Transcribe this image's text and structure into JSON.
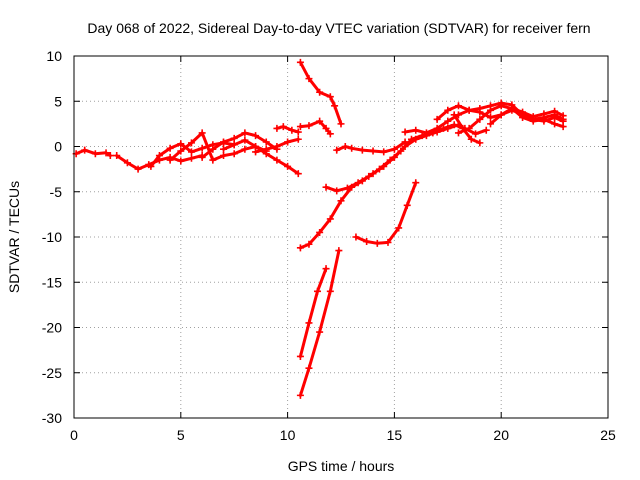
{
  "chart_data": {
    "type": "scatter",
    "title": "Day 068 of 2022, Sidereal Day-to-day VTEC variation (SDTVAR) for receiver fern",
    "xlabel": "GPS time / hours",
    "ylabel": "SDTVAR / TECUs",
    "xlim": [
      0,
      25
    ],
    "ylim": [
      -30,
      10
    ],
    "xticks": [
      0,
      5,
      10,
      15,
      20,
      25
    ],
    "yticks": [
      -30,
      -25,
      -20,
      -15,
      -10,
      -5,
      0,
      5,
      10
    ],
    "grid": true,
    "marker": "plus",
    "color": "#ff0000",
    "series": [
      {
        "name": "seg-early-1",
        "x": [
          0.1,
          0.5,
          1.0,
          1.5,
          1.7
        ],
        "y": [
          -0.8,
          -0.4,
          -0.8,
          -0.7,
          -1.0
        ]
      },
      {
        "name": "seg-early-2",
        "x": [
          2.0,
          2.5,
          3.0,
          3.5,
          4.0,
          4.5,
          5.0,
          5.5,
          6.0
        ],
        "y": [
          -1.0,
          -1.8,
          -2.5,
          -2.0,
          -1.5,
          -1.2,
          -1.6,
          -1.3,
          -1.0
        ]
      },
      {
        "name": "seg-early-3",
        "x": [
          3.6,
          4.0,
          4.5,
          5.0,
          5.5,
          6.0,
          6.5,
          7.0,
          7.5
        ],
        "y": [
          -2.2,
          -1.0,
          -0.2,
          0.3,
          -0.6,
          -0.2,
          0.2,
          0.4,
          0.2
        ]
      },
      {
        "name": "seg-early-4",
        "x": [
          4.5,
          5.0,
          5.5,
          6.0,
          6.5,
          7.0,
          7.5,
          8.0,
          8.5,
          9.0
        ],
        "y": [
          -1.5,
          -0.5,
          0.4,
          1.5,
          -1.5,
          -1.0,
          -0.8,
          -0.3,
          0.0,
          -0.5
        ]
      },
      {
        "name": "seg-early-5",
        "x": [
          6.0,
          6.5,
          7.0,
          7.5,
          8.0,
          8.5,
          9.0,
          9.5
        ],
        "y": [
          -1.2,
          -0.3,
          0.5,
          0.9,
          1.5,
          1.2,
          0.5,
          -0.3
        ]
      },
      {
        "name": "seg-early-6",
        "x": [
          7.0,
          7.5,
          8.0,
          8.5,
          9.0,
          9.5,
          10.0,
          10.5
        ],
        "y": [
          -0.3,
          0.2,
          0.7,
          0.0,
          -0.8,
          -1.5,
          -2.2,
          -3.0
        ]
      },
      {
        "name": "seg-early-7",
        "x": [
          8.5,
          9.0,
          9.5,
          10.0,
          10.5
        ],
        "y": [
          -0.6,
          -0.3,
          0.0,
          0.5,
          0.8
        ]
      },
      {
        "name": "seg-early-8",
        "x": [
          9.5,
          9.8,
          10.2,
          10.5
        ],
        "y": [
          2.0,
          2.2,
          1.8,
          1.6
        ]
      },
      {
        "name": "seg-drop-high",
        "x": [
          10.6,
          11.0,
          11.5,
          12.0,
          12.2,
          12.5
        ],
        "y": [
          9.3,
          7.5,
          6.0,
          5.5,
          4.5,
          2.5
        ]
      },
      {
        "name": "seg-bump-11",
        "x": [
          10.6,
          11.0,
          11.5,
          11.8,
          12.0
        ],
        "y": [
          2.2,
          2.3,
          2.8,
          2.0,
          1.4
        ]
      },
      {
        "name": "seg-mid-flat",
        "x": [
          12.3,
          12.7,
          13.0,
          13.5,
          14.0,
          14.5,
          15.0,
          15.5
        ],
        "y": [
          -0.4,
          0.0,
          -0.2,
          -0.4,
          -0.5,
          -0.6,
          -0.3,
          0.5
        ]
      },
      {
        "name": "seg-rise-long",
        "x": [
          10.6,
          11.0,
          11.5,
          12.0,
          12.5,
          13.0,
          13.5,
          14.0,
          14.5,
          15.0,
          15.5,
          16.0,
          16.5,
          17.0,
          17.5,
          18.0
        ],
        "y": [
          -11.2,
          -10.8,
          -9.5,
          -8.0,
          -6.0,
          -4.5,
          -3.8,
          -3.0,
          -2.2,
          -1.2,
          0.0,
          0.8,
          1.2,
          1.6,
          2.0,
          2.4
        ]
      },
      {
        "name": "seg-low-loop",
        "x": [
          11.8,
          12.3,
          12.8,
          13.3,
          13.8,
          14.3,
          14.8,
          15.3,
          15.8,
          16.3,
          16.8,
          17.3,
          17.8,
          18.3,
          18.8,
          19.3
        ],
        "y": [
          -4.5,
          -4.9,
          -4.6,
          -4.0,
          -3.3,
          -2.5,
          -1.5,
          -0.5,
          0.8,
          1.2,
          1.5,
          2.0,
          2.4,
          2.0,
          1.4,
          1.8
        ]
      },
      {
        "name": "seg-neg10-climb",
        "x": [
          13.2,
          13.7,
          14.2,
          14.7,
          15.2,
          15.6,
          16.0
        ],
        "y": [
          -10.0,
          -10.5,
          -10.7,
          -10.6,
          -9.0,
          -6.5,
          -4.0
        ]
      },
      {
        "name": "seg-steep-a",
        "x": [
          10.6,
          11.0,
          11.4,
          11.8
        ],
        "y": [
          -23.2,
          -19.5,
          -16.0,
          -13.5
        ]
      },
      {
        "name": "seg-steep-b",
        "x": [
          10.6,
          11.0,
          11.5,
          12.0,
          12.4
        ],
        "y": [
          -27.5,
          -24.5,
          -20.5,
          -16.0,
          -11.5
        ]
      },
      {
        "name": "seg-late-1",
        "x": [
          15.5,
          16.0,
          16.5,
          17.0,
          17.5,
          18.0,
          18.5,
          19.0,
          19.5,
          20.0,
          20.5,
          21.0,
          21.5,
          22.0,
          22.5,
          22.9
        ],
        "y": [
          1.6,
          1.8,
          1.5,
          2.0,
          2.8,
          3.5,
          4.0,
          3.8,
          3.2,
          3.5,
          4.0,
          3.6,
          3.0,
          2.8,
          3.2,
          2.8
        ]
      },
      {
        "name": "seg-late-2",
        "x": [
          17.0,
          17.5,
          18.0,
          18.5,
          19.0,
          19.5,
          20.0,
          20.5,
          21.0,
          21.5,
          22.0,
          22.5,
          22.9
        ],
        "y": [
          3.0,
          4.0,
          4.5,
          4.0,
          4.2,
          4.5,
          4.8,
          4.6,
          3.5,
          3.0,
          3.2,
          3.5,
          3.0
        ]
      },
      {
        "name": "seg-late-3",
        "x": [
          18.0,
          18.5,
          19.0,
          19.5,
          20.0,
          20.5,
          21.0,
          21.5,
          22.0,
          22.5,
          22.9
        ],
        "y": [
          1.5,
          2.0,
          3.0,
          4.0,
          4.5,
          4.2,
          3.2,
          2.8,
          3.0,
          2.5,
          2.2
        ]
      },
      {
        "name": "seg-late-4",
        "x": [
          19.5,
          20.0,
          20.5,
          21.0,
          21.5,
          22.0,
          22.5,
          22.9
        ],
        "y": [
          2.5,
          3.5,
          4.2,
          3.8,
          3.3,
          3.6,
          3.9,
          3.4
        ]
      },
      {
        "name": "seg-late-5",
        "x": [
          17.8,
          18.2,
          18.6,
          19.0
        ],
        "y": [
          3.5,
          2.0,
          0.8,
          0.4
        ]
      }
    ]
  }
}
